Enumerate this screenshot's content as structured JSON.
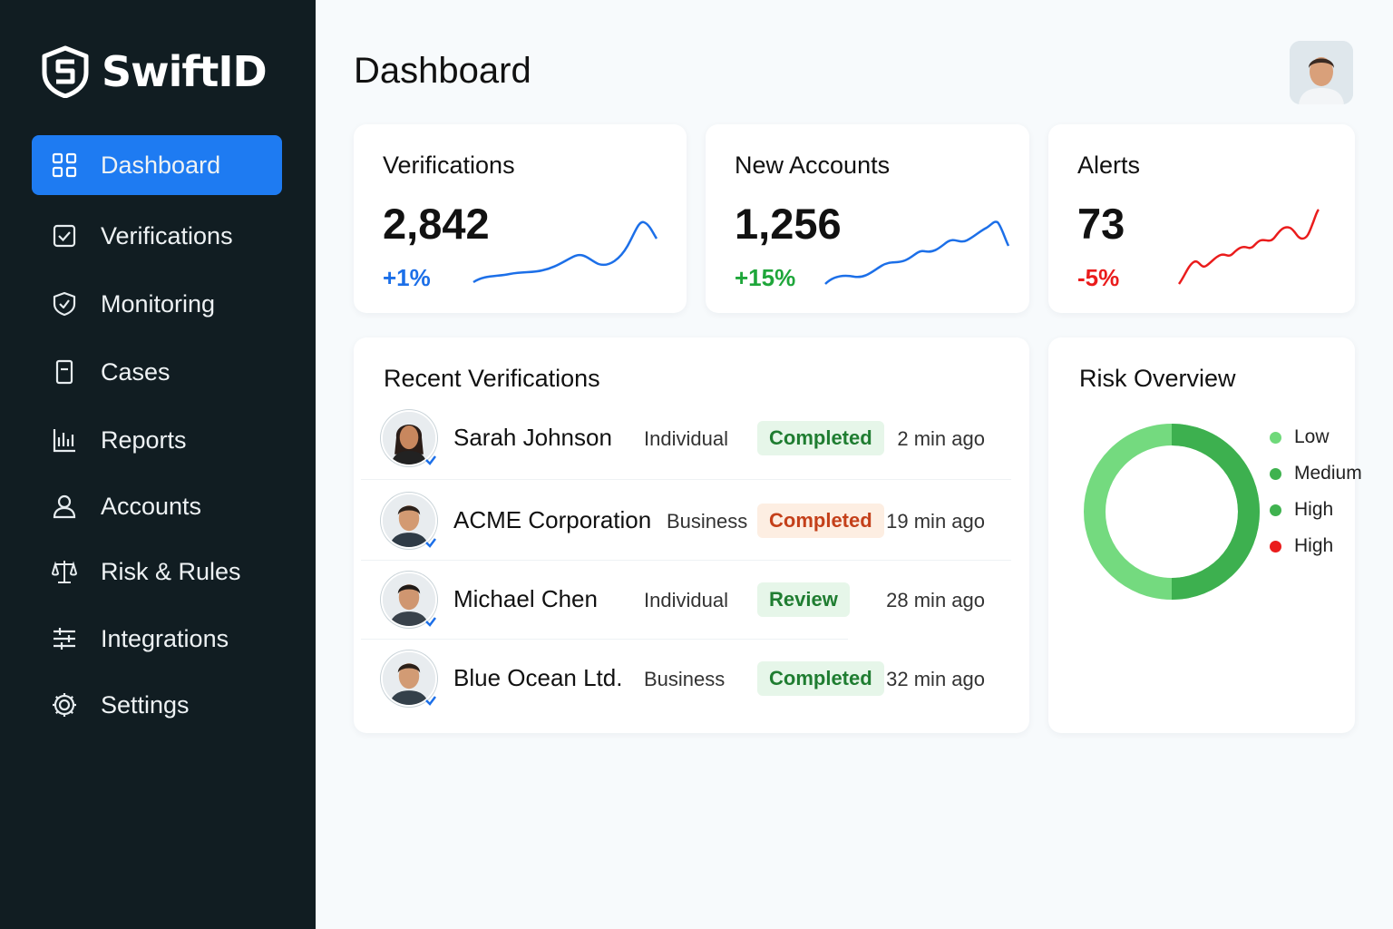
{
  "app": {
    "name": "SwiftID"
  },
  "sidebar": {
    "items": [
      {
        "label": "Dashboard",
        "icon": "grid-icon",
        "active": true
      },
      {
        "label": "Verifications",
        "icon": "checkbox-icon"
      },
      {
        "label": "Monitoring",
        "icon": "shield-check-icon"
      },
      {
        "label": "Cases",
        "icon": "document-icon"
      },
      {
        "label": "Reports",
        "icon": "bar-chart-icon"
      },
      {
        "label": "Accounts",
        "icon": "user-icon"
      },
      {
        "label": "Risk & Rules",
        "icon": "scale-icon"
      },
      {
        "label": "Integrations",
        "icon": "sliders-icon"
      },
      {
        "label": "Settings",
        "icon": "gear-icon"
      }
    ]
  },
  "header": {
    "title": "Dashboard"
  },
  "stats": [
    {
      "title": "Verifications",
      "value": "2,842",
      "change": "+1%",
      "color": "#1c6fe8"
    },
    {
      "title": "New Accounts",
      "value": "1,256",
      "change": "+15%",
      "color": "#1ea63a"
    },
    {
      "title": "Alerts",
      "value": "73",
      "change": "-5%",
      "color": "#ea1c1c"
    }
  ],
  "recent": {
    "title": "Recent Verifications",
    "rows": [
      {
        "name": "Sarah Johnson",
        "type": "Individual",
        "status": "Completed",
        "status_color": "green",
        "time": "2 min ago"
      },
      {
        "name": "ACME Corporation",
        "type": "Business",
        "status": "Completed",
        "status_color": "orange",
        "time": "19 min ago"
      },
      {
        "name": "Michael Chen",
        "type": "Individual",
        "status": "Review",
        "status_color": "green",
        "time": "28 min ago"
      },
      {
        "name": "Blue Ocean Ltd.",
        "type": "Business",
        "status": "Completed",
        "status_color": "green",
        "time": "32 min ago"
      }
    ]
  },
  "risk": {
    "title": "Risk Overview",
    "legend": [
      {
        "label": "Low",
        "color": "#6fd97a"
      },
      {
        "label": "Medium",
        "color": "#3fb24f"
      },
      {
        "label": "High",
        "color": "#3fb24f"
      },
      {
        "label": "High",
        "color": "#ea1c1c"
      }
    ],
    "donut_split": 0.5
  }
}
